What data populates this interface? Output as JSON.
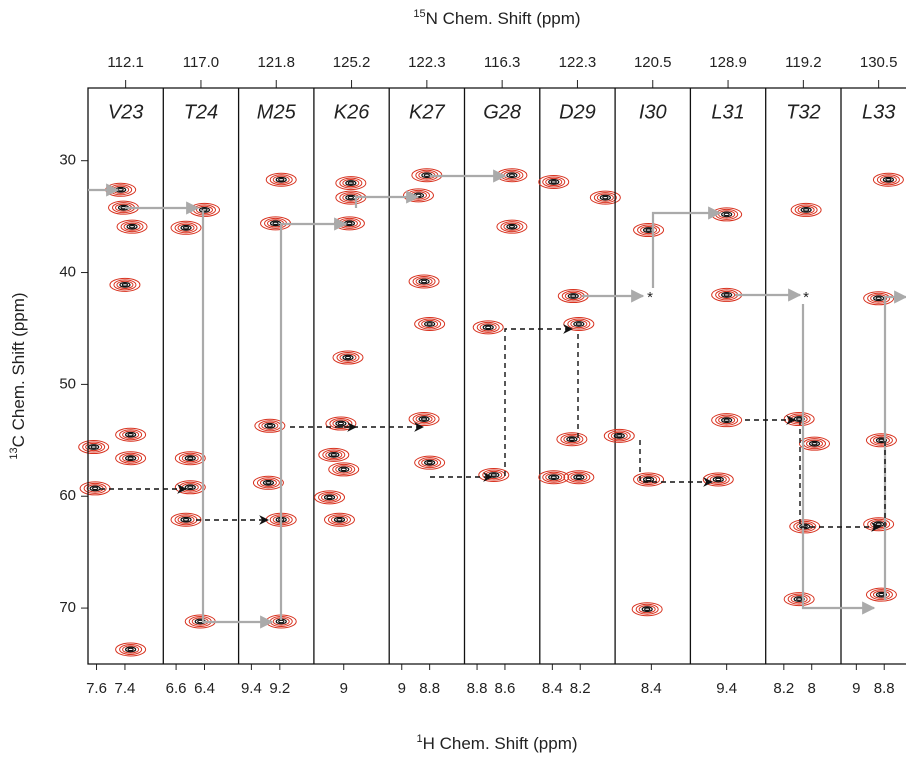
{
  "chart_data": {
    "type": "strip",
    "top_axis_label": {
      "sup": "15",
      "text": "N Chem. Shift (ppm)"
    },
    "y_axis_label": {
      "sup": "13",
      "text": "C Chem. Shift (ppm)"
    },
    "x_axis_label": {
      "sup": "1",
      "text": "H Chem. Shift (ppm)"
    },
    "ylim": [
      75,
      23.5
    ],
    "yticks": [
      30,
      40,
      50,
      60,
      70
    ],
    "contour_color": "#d8321f",
    "core_color": "#111111",
    "annotations": [
      "*",
      "*"
    ],
    "strips": [
      {
        "residue": "V23",
        "n15": 112.1,
        "xlim": [
          7.66,
          7.13
        ],
        "xticks": [
          7.6,
          7.4
        ],
        "peaks": {
          "h": [
            7.43,
            7.41,
            7.35,
            7.4,
            7.62,
            7.36,
            7.36,
            7.61,
            7.36
          ],
          "c": [
            32.6,
            34.2,
            35.9,
            41.1,
            55.6,
            54.5,
            56.6,
            59.3,
            73.7
          ]
        }
      },
      {
        "residue": "T24",
        "n15": {
          "value": 117,
          "label": "117.0"
        },
        "xlim": [
          6.69,
          6.16
        ],
        "xticks": [
          6.6,
          6.4
        ],
        "peaks": {
          "h": [
            6.4,
            6.53,
            6.5,
            6.5,
            6.53,
            6.43
          ],
          "c": [
            34.4,
            36.0,
            56.6,
            59.2,
            62.1,
            71.2
          ]
        }
      },
      {
        "residue": "M25",
        "n15": 121.8,
        "xlim": [
          9.49,
          8.96
        ],
        "xticks": [
          9.4,
          9.2
        ],
        "peaks": {
          "h": [
            9.19,
            9.23,
            9.27,
            9.28,
            9.19,
            9.19
          ],
          "c": [
            31.7,
            35.6,
            53.7,
            58.8,
            62.1,
            71.2
          ]
        }
      },
      {
        "residue": "K26",
        "n15": 125.2,
        "xlim": [
          9.21,
          8.68
        ],
        "xticks": [
          9.0
        ],
        "peaks": {
          "h": [
            8.95,
            8.95,
            8.96,
            8.97,
            9.02,
            9.07,
            9.0,
            9.1,
            9.03
          ],
          "c": [
            32.0,
            33.3,
            35.6,
            47.6,
            53.5,
            56.3,
            57.6,
            60.1,
            62.1
          ]
        }
      },
      {
        "residue": "K27",
        "n15": 122.3,
        "xlim": [
          9.09,
          8.55
        ],
        "xticks": [
          9.0,
          8.8
        ],
        "peaks": {
          "h": [
            8.82,
            8.88,
            8.84,
            8.8,
            8.84,
            8.8
          ],
          "c": [
            31.3,
            33.1,
            40.8,
            44.6,
            53.1,
            57.0
          ]
        }
      },
      {
        "residue": "G28",
        "n15": 116.3,
        "xlim": [
          8.89,
          8.35
        ],
        "xticks": [
          8.8,
          8.6
        ],
        "peaks": {
          "h": [
            8.55,
            8.55,
            8.72,
            8.68
          ],
          "c": [
            31.3,
            35.9,
            44.9,
            58.1
          ]
        }
      },
      {
        "residue": "D29",
        "n15": 122.3,
        "xlim": [
          8.49,
          7.95
        ],
        "xticks": [
          8.4,
          8.2
        ],
        "peaks": {
          "h": [
            8.39,
            8.02,
            8.25,
            8.21,
            8.26,
            8.39,
            8.21
          ],
          "c": [
            31.9,
            33.3,
            42.1,
            44.6,
            54.9,
            58.3,
            58.3
          ]
        }
      },
      {
        "residue": "I30",
        "n15": 120.5,
        "xlim": [
          8.66,
          8.12
        ],
        "xticks": [
          8.4
        ],
        "peaks": {
          "h": [
            8.42,
            8.63,
            8.42,
            8.43
          ],
          "c": [
            36.2,
            54.6,
            58.5,
            70.1
          ]
        }
      },
      {
        "residue": "L31",
        "n15": 128.9,
        "xlim": [
          9.66,
          9.12
        ],
        "xticks": [
          9.4
        ],
        "peaks": {
          "h": [
            9.4,
            9.4,
            9.4,
            9.46
          ],
          "c": [
            34.8,
            42.0,
            53.2,
            58.5
          ]
        }
      },
      {
        "residue": "T32",
        "n15": 119.2,
        "xlim": [
          8.33,
          7.79
        ],
        "xticks": [
          8.2,
          8.0
        ],
        "peaks": {
          "h": [
            8.04,
            8.09,
            7.98,
            8.05,
            8.09
          ],
          "c": [
            34.4,
            53.1,
            55.3,
            62.7,
            69.2
          ]
        }
      },
      {
        "residue": "L33",
        "n15": 130.5,
        "xlim": [
          9.11,
          8.57
        ],
        "xticks": [
          9.0,
          8.8
        ],
        "peaks": {
          "h": [
            8.77,
            8.84,
            8.82,
            8.84,
            8.82
          ],
          "c": [
            31.7,
            42.3,
            55.0,
            62.5,
            68.8
          ]
        }
      }
    ]
  }
}
